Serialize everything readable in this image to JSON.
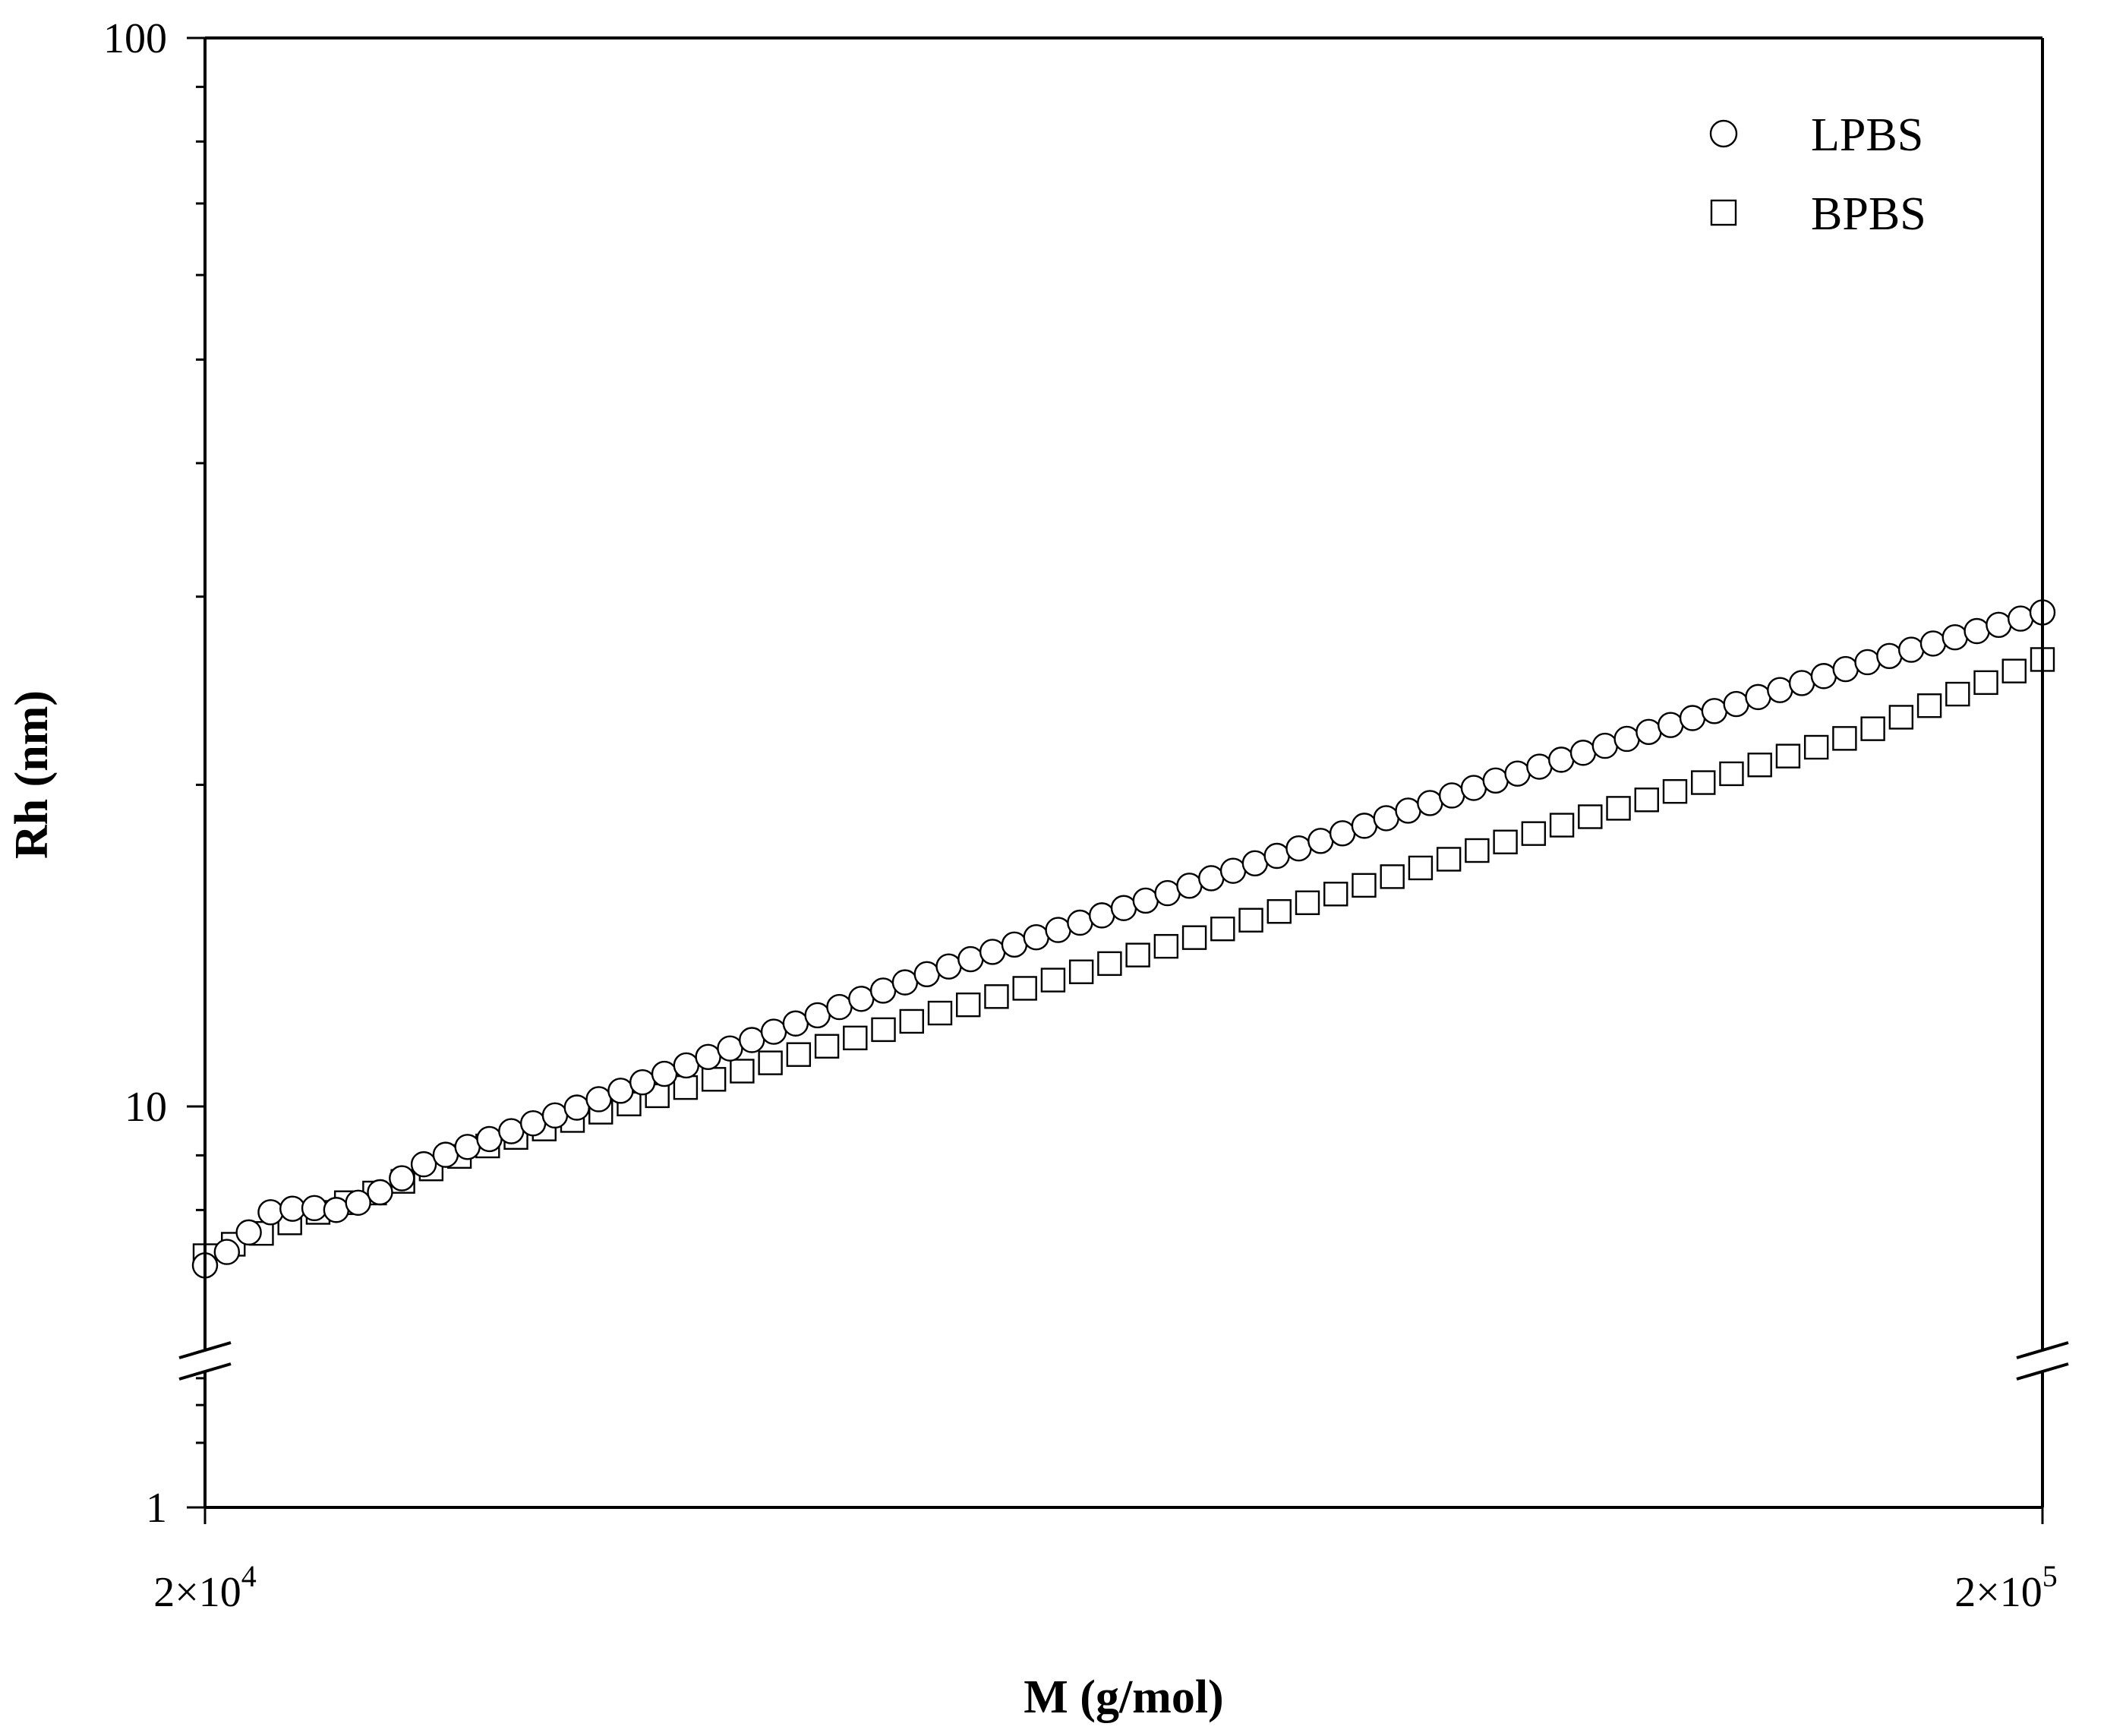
{
  "chart_data": {
    "type": "scatter",
    "xlabel": "M (g/mol)",
    "ylabel": "Rh (nm)",
    "x_scale": "log",
    "y_scale": "log",
    "xlim": [
      20000,
      200000
    ],
    "ylim": [
      1,
      100
    ],
    "y_axis_break": [
      4.3,
      7
    ],
    "x_tick_labels": [
      {
        "value": 20000,
        "base": "2×10",
        "exp": "4"
      },
      {
        "value": 200000,
        "base": "2×10",
        "exp": "5"
      }
    ],
    "y_tick_labels": [
      {
        "value": 1,
        "label": "1"
      },
      {
        "value": 10,
        "label": "10"
      },
      {
        "value": 100,
        "label": "100"
      }
    ],
    "legend_position": "top-right",
    "series": [
      {
        "name": "LPBS",
        "marker": "circle",
        "x_start": 20000,
        "x_end": 200000,
        "n_points": 85,
        "anchors": [
          [
            20000,
            7.1
          ],
          [
            20800,
            7.4
          ],
          [
            21600,
            7.95
          ],
          [
            22600,
            8.05
          ],
          [
            23600,
            8.0
          ],
          [
            24600,
            8.2
          ],
          [
            26500,
            8.9
          ],
          [
            32000,
            10.0
          ],
          [
            40000,
            11.6
          ],
          [
            50000,
            13.4
          ],
          [
            63000,
            15.3
          ],
          [
            80000,
            17.6
          ],
          [
            100000,
            20.1
          ],
          [
            126000,
            22.8
          ],
          [
            160000,
            26.0
          ],
          [
            200000,
            29.0
          ]
        ]
      },
      {
        "name": "BPBS",
        "marker": "square",
        "x_start": 20000,
        "x_end": 200000,
        "n_points": 66,
        "anchors": [
          [
            20000,
            7.25
          ],
          [
            21000,
            7.5
          ],
          [
            23000,
            7.95
          ],
          [
            25000,
            8.35
          ],
          [
            28000,
            9.1
          ],
          [
            32000,
            9.75
          ],
          [
            40000,
            10.9
          ],
          [
            50000,
            12.2
          ],
          [
            63000,
            13.7
          ],
          [
            80000,
            15.55
          ],
          [
            100000,
            17.5
          ],
          [
            126000,
            19.7
          ],
          [
            160000,
            22.4
          ],
          [
            200000,
            26.2
          ]
        ]
      }
    ]
  }
}
